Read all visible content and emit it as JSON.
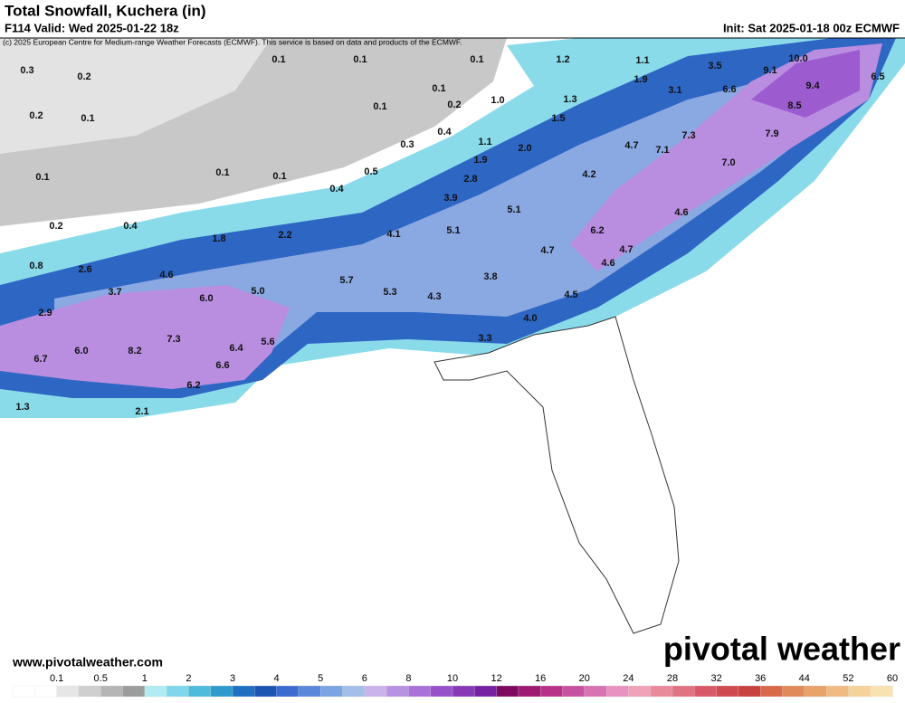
{
  "header": {
    "title": "Total Snowfall, Kuchera (in)",
    "valid": "F114 Valid: Wed 2025-01-22 18z",
    "init": "Init: Sat 2025-01-18 00z ECMWF",
    "credit": "(c) 2025 European Centre for Medium-range Weather Forecasts (ECMWF). This service is based on data and products of the ECMWF."
  },
  "map": {
    "labels": [
      "0.3",
      "0.2",
      "0.1",
      "0.1",
      "0.1",
      "1.2",
      "1.1",
      "3.5",
      "9.1",
      "10.0",
      "6.5",
      "9.4",
      "0.2",
      "0.1",
      "0.1",
      "1.0",
      "1.9",
      "3.1",
      "6.6",
      "0.1",
      "0.2",
      "1.3",
      "8.5",
      "1.5",
      "0.4",
      "0.3",
      "1.1",
      "2.0",
      "4.7",
      "7.3",
      "7.9",
      "7.1",
      "0.1",
      "0.1",
      "0.1",
      "0.5",
      "1.9",
      "7.0",
      "4.2",
      "0.4",
      "2.8",
      "3.9",
      "5.1",
      "4.6",
      "0.2",
      "0.4",
      "1.8",
      "2.2",
      "4.1",
      "5.1",
      "6.2",
      "4.7",
      "0.8",
      "2.6",
      "4.6",
      "4.7",
      "4.6",
      "3.7",
      "6.0",
      "5.0",
      "5.7",
      "5.3",
      "4.3",
      "3.8",
      "4.5",
      "2.9",
      "4.0",
      "6.7",
      "6.0",
      "8.2",
      "7.3",
      "6.4",
      "5.6",
      "3.3",
      "6.6",
      "6.2",
      "1.3",
      "2.1"
    ]
  },
  "footer": {
    "website": "www.pivotalweather.com",
    "logo": "pivotal weather"
  },
  "colorbar": {
    "ticks": [
      "0.1",
      "0.5",
      "1",
      "2",
      "3",
      "4",
      "5",
      "6",
      "8",
      "10",
      "12",
      "16",
      "20",
      "24",
      "28",
      "32",
      "36",
      "44",
      "52",
      "60"
    ],
    "colors": [
      "#ffffff",
      "#ffffff",
      "#e6e6e6",
      "#cfcfcf",
      "#b5b5b5",
      "#9c9c9c",
      "#b0ecf2",
      "#80d6ea",
      "#4fbbdc",
      "#2f9bcc",
      "#1f70c2",
      "#1c56b2",
      "#3c6cd2",
      "#5b88da",
      "#7ba4e2",
      "#a2bee9",
      "#cab2ea",
      "#b892e2",
      "#a872d9",
      "#9852c9",
      "#8839b8",
      "#7621a1",
      "#7d0a5e",
      "#9e1a72",
      "#b8328a",
      "#c852a2",
      "#d872b2",
      "#e892c2",
      "#f0a2b8",
      "#e88a9a",
      "#e07282",
      "#d85a6a",
      "#d04a52",
      "#c84242",
      "#d86a4a",
      "#e08a5a",
      "#e8a26a",
      "#f0ba82",
      "#f5d29a",
      "#f8e2b2"
    ]
  }
}
